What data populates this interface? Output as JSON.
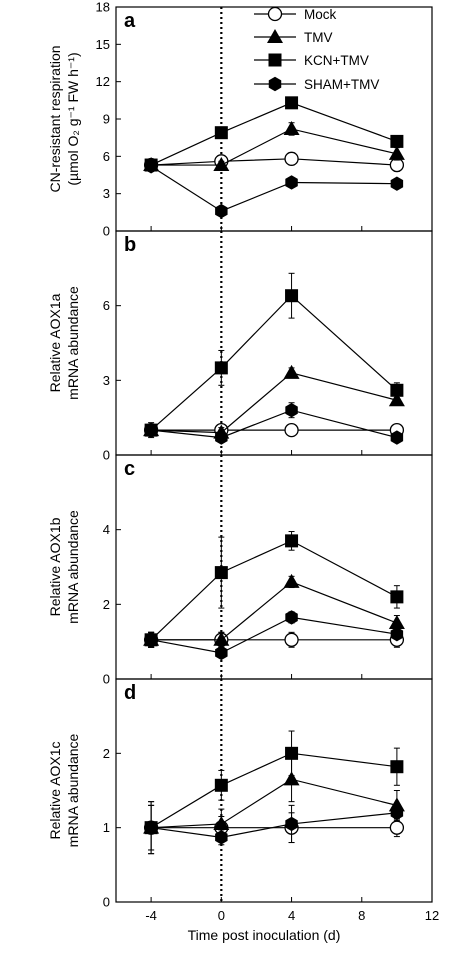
{
  "chart_data": [
    {
      "type": "line",
      "panel": "a",
      "ylabel_lines": [
        "CN-resistant respiration",
        "(µmol O₂ g⁻¹ FW h⁻¹)"
      ],
      "ylim": [
        0,
        18
      ],
      "yticks": [
        0,
        3,
        6,
        9,
        12,
        15,
        18
      ],
      "xlim": [
        -6,
        12
      ],
      "xticks": [
        -4,
        0,
        4,
        8,
        12
      ],
      "x": [
        -4,
        0,
        4,
        10
      ],
      "series": [
        {
          "name": "Mock",
          "marker": "circle-open",
          "values": [
            5.3,
            5.6,
            5.8,
            5.3
          ],
          "errors": [
            0.3,
            0.3,
            0.5,
            0.5
          ]
        },
        {
          "name": "TMV",
          "marker": "triangle",
          "values": [
            5.3,
            5.3,
            8.2,
            6.2
          ],
          "errors": [
            0.3,
            0.3,
            0.5,
            0.5
          ]
        },
        {
          "name": "KCN+TMV",
          "marker": "square",
          "values": [
            5.3,
            7.9,
            10.3,
            7.2
          ],
          "errors": [
            0.3,
            0.3,
            0.3,
            0.3
          ]
        },
        {
          "name": "SHAM+TMV",
          "marker": "hexagon",
          "values": [
            5.2,
            1.6,
            3.9,
            3.8
          ],
          "errors": [
            0.2,
            0.2,
            0.2,
            0.2
          ]
        }
      ]
    },
    {
      "type": "line",
      "panel": "b",
      "ylabel_lines": [
        "Relative AOX1a",
        "mRNA abundance"
      ],
      "ylim": [
        0,
        9
      ],
      "yticks": [
        0,
        3,
        6
      ],
      "xlim": [
        -6,
        12
      ],
      "xticks": [
        -4,
        0,
        4,
        8,
        12
      ],
      "x": [
        -4,
        0,
        4,
        10
      ],
      "series": [
        {
          "name": "Mock",
          "marker": "circle-open",
          "values": [
            1.0,
            1.0,
            1.0,
            1.0
          ],
          "errors": [
            0.2,
            0.2,
            0.2,
            0.15
          ]
        },
        {
          "name": "TMV",
          "marker": "triangle",
          "values": [
            1.0,
            0.9,
            3.3,
            2.2
          ],
          "errors": [
            0.2,
            0.2,
            0.2,
            0.2
          ]
        },
        {
          "name": "KCN+TMV",
          "marker": "square",
          "values": [
            1.0,
            3.5,
            6.4,
            2.6
          ],
          "errors": [
            0.2,
            0.7,
            0.9,
            0.3
          ]
        },
        {
          "name": "SHAM+TMV",
          "marker": "hexagon",
          "values": [
            1.0,
            0.7,
            1.8,
            0.7
          ],
          "errors": [
            0.3,
            0.15,
            0.3,
            0.1
          ]
        }
      ]
    },
    {
      "type": "line",
      "panel": "c",
      "ylabel_lines": [
        "Relative AOX1b",
        "mRNA abundance"
      ],
      "ylim": [
        0,
        6
      ],
      "yticks": [
        0,
        2,
        4
      ],
      "xlim": [
        -6,
        12
      ],
      "xticks": [
        -4,
        0,
        4,
        8,
        12
      ],
      "x": [
        -4,
        0,
        4,
        10
      ],
      "series": [
        {
          "name": "Mock",
          "marker": "circle-open",
          "values": [
            1.05,
            1.05,
            1.05,
            1.05
          ],
          "errors": [
            0.2,
            0.2,
            0.2,
            0.2
          ]
        },
        {
          "name": "TMV",
          "marker": "triangle",
          "values": [
            1.05,
            1.05,
            2.6,
            1.5
          ],
          "errors": [
            0.2,
            0.2,
            0.15,
            0.2
          ]
        },
        {
          "name": "KCN+TMV",
          "marker": "square",
          "values": [
            1.05,
            2.85,
            3.7,
            2.2
          ],
          "errors": [
            0.2,
            0.95,
            0.25,
            0.3
          ]
        },
        {
          "name": "SHAM+TMV",
          "marker": "hexagon",
          "values": [
            1.05,
            0.7,
            1.65,
            1.2
          ],
          "errors": [
            0.2,
            0.1,
            0.15,
            0.1
          ]
        }
      ]
    },
    {
      "type": "line",
      "panel": "d",
      "ylabel_lines": [
        "Relative AOX1c",
        "mRNA abundance"
      ],
      "ylim": [
        0,
        3
      ],
      "yticks": [
        0,
        1,
        2
      ],
      "xlim": [
        -6,
        12
      ],
      "xticks": [
        -4,
        0,
        4,
        8,
        12
      ],
      "xtick_labels": [
        "-4",
        "0",
        "4",
        "8",
        "12"
      ],
      "xlabel": "Time post inoculation (d)",
      "x": [
        -4,
        0,
        4,
        10
      ],
      "series": [
        {
          "name": "Mock",
          "marker": "circle-open",
          "values": [
            1.0,
            1.0,
            1.0,
            1.0
          ],
          "errors": [
            0.3,
            0.15,
            0.2,
            0.12
          ]
        },
        {
          "name": "TMV",
          "marker": "triangle",
          "values": [
            1.0,
            1.05,
            1.65,
            1.3
          ],
          "errors": [
            0.35,
            0.2,
            0.3,
            0.2
          ]
        },
        {
          "name": "KCN+TMV",
          "marker": "square",
          "values": [
            1.0,
            1.57,
            2.0,
            1.82
          ],
          "errors": [
            0.35,
            0.2,
            0.3,
            0.25
          ]
        },
        {
          "name": "SHAM+TMV",
          "marker": "hexagon",
          "values": [
            1.0,
            0.87,
            1.05,
            1.2
          ],
          "errors": [
            0.3,
            0.1,
            0.25,
            0.1
          ]
        }
      ]
    }
  ],
  "legend": {
    "placement": "top-right of panel a",
    "entries": [
      {
        "label": "Mock",
        "marker": "circle-open"
      },
      {
        "label": "TMV",
        "marker": "triangle"
      },
      {
        "label": "KCN+TMV",
        "marker": "square"
      },
      {
        "label": "SHAM+TMV",
        "marker": "hexagon"
      }
    ]
  },
  "reference_line": {
    "x": 0,
    "style": "dotted"
  }
}
